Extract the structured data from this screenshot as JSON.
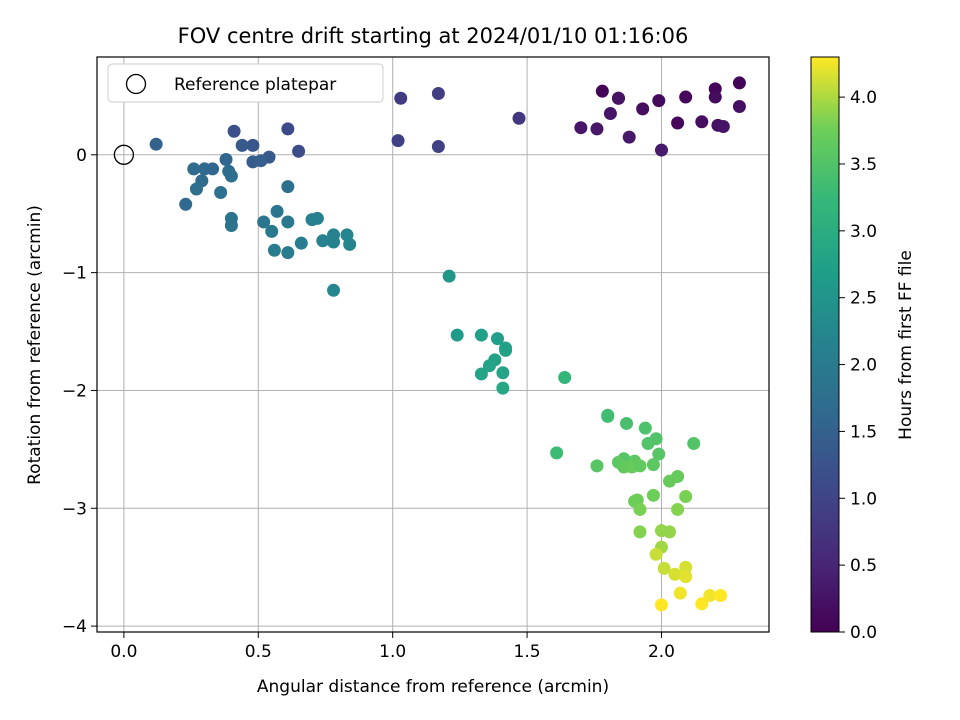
{
  "chart_data": {
    "type": "scatter",
    "title": "FOV centre drift starting at 2024/01/10 01:16:06",
    "xlabel": "Angular distance from reference (arcmin)",
    "ylabel": "Rotation from reference (arcmin)",
    "xlim": [
      -0.1,
      2.4
    ],
    "ylim": [
      -4.05,
      0.83
    ],
    "xticks": [
      0.0,
      0.5,
      1.0,
      1.5,
      2.0
    ],
    "yticks": [
      0,
      -1,
      -2,
      -3,
      -4
    ],
    "xtick_labels": [
      "0.0",
      "0.5",
      "1.0",
      "1.5",
      "2.0"
    ],
    "ytick_labels": [
      "0",
      "−1",
      "−2",
      "−3",
      "−4"
    ],
    "grid": true,
    "legend": {
      "position": "top-left",
      "entries": [
        "Reference platepar"
      ]
    },
    "reference_point": {
      "x": 0,
      "y": 0
    },
    "colorbar": {
      "label": "Hours from first FF file",
      "range": [
        0.0,
        4.3
      ],
      "ticks": [
        0.0,
        0.5,
        1.0,
        1.5,
        2.0,
        2.5,
        3.0,
        3.5,
        4.0
      ],
      "tick_labels": [
        "0.0",
        "0.5",
        "1.0",
        "1.5",
        "2.0",
        "2.5",
        "3.0",
        "3.5",
        "4.0"
      ],
      "colormap": "viridis"
    },
    "points": [
      {
        "x": 1.78,
        "y": 0.54,
        "c": 0.05
      },
      {
        "x": 1.84,
        "y": 0.48,
        "c": 0.08
      },
      {
        "x": 1.99,
        "y": 0.46,
        "c": 0.12
      },
      {
        "x": 2.09,
        "y": 0.49,
        "c": 0.1
      },
      {
        "x": 2.2,
        "y": 0.56,
        "c": 0.07
      },
      {
        "x": 2.29,
        "y": 0.61,
        "c": 0.05
      },
      {
        "x": 2.2,
        "y": 0.49,
        "c": 0.15
      },
      {
        "x": 2.29,
        "y": 0.41,
        "c": 0.2
      },
      {
        "x": 2.15,
        "y": 0.28,
        "c": 0.18
      },
      {
        "x": 2.21,
        "y": 0.25,
        "c": 0.22
      },
      {
        "x": 2.23,
        "y": 0.24,
        "c": 0.25
      },
      {
        "x": 2.06,
        "y": 0.27,
        "c": 0.1
      },
      {
        "x": 1.93,
        "y": 0.39,
        "c": 0.18
      },
      {
        "x": 1.81,
        "y": 0.35,
        "c": 0.3
      },
      {
        "x": 1.84,
        "y": 0.48,
        "c": 0.25
      },
      {
        "x": 1.7,
        "y": 0.23,
        "c": 0.28
      },
      {
        "x": 1.76,
        "y": 0.22,
        "c": 0.3
      },
      {
        "x": 1.88,
        "y": 0.15,
        "c": 0.32
      },
      {
        "x": 2.0,
        "y": 0.04,
        "c": 0.35
      },
      {
        "x": 1.47,
        "y": 0.31,
        "c": 0.8
      },
      {
        "x": 1.03,
        "y": 0.48,
        "c": 0.85
      },
      {
        "x": 1.17,
        "y": 0.52,
        "c": 0.9
      },
      {
        "x": 1.02,
        "y": 0.12,
        "c": 0.95
      },
      {
        "x": 1.17,
        "y": 0.07,
        "c": 0.95
      },
      {
        "x": 0.61,
        "y": 0.22,
        "c": 1.1
      },
      {
        "x": 0.65,
        "y": 0.03,
        "c": 1.15
      },
      {
        "x": 0.41,
        "y": 0.2,
        "c": 1.2
      },
      {
        "x": 0.48,
        "y": 0.08,
        "c": 1.3
      },
      {
        "x": 0.44,
        "y": 0.08,
        "c": 1.35
      },
      {
        "x": 0.54,
        "y": -0.02,
        "c": 1.35
      },
      {
        "x": 0.48,
        "y": -0.06,
        "c": 1.4
      },
      {
        "x": 0.51,
        "y": -0.05,
        "c": 1.45
      },
      {
        "x": 0.12,
        "y": 0.09,
        "c": 1.5
      },
      {
        "x": 0.38,
        "y": -0.04,
        "c": 1.6
      },
      {
        "x": 0.26,
        "y": -0.12,
        "c": 1.7
      },
      {
        "x": 0.3,
        "y": -0.12,
        "c": 1.65
      },
      {
        "x": 0.33,
        "y": -0.12,
        "c": 1.6
      },
      {
        "x": 0.39,
        "y": -0.14,
        "c": 1.7
      },
      {
        "x": 0.4,
        "y": -0.18,
        "c": 1.75
      },
      {
        "x": 0.29,
        "y": -0.22,
        "c": 1.7
      },
      {
        "x": 0.27,
        "y": -0.29,
        "c": 1.75
      },
      {
        "x": 0.36,
        "y": -0.32,
        "c": 1.8
      },
      {
        "x": 0.23,
        "y": -0.42,
        "c": 1.65
      },
      {
        "x": 0.61,
        "y": -0.27,
        "c": 1.8
      },
      {
        "x": 0.4,
        "y": -0.54,
        "c": 1.85
      },
      {
        "x": 0.4,
        "y": -0.6,
        "c": 1.85
      },
      {
        "x": 0.57,
        "y": -0.48,
        "c": 1.9
      },
      {
        "x": 0.52,
        "y": -0.57,
        "c": 1.9
      },
      {
        "x": 0.55,
        "y": -0.65,
        "c": 1.95
      },
      {
        "x": 0.61,
        "y": -0.57,
        "c": 1.95
      },
      {
        "x": 0.56,
        "y": -0.81,
        "c": 2.0
      },
      {
        "x": 0.61,
        "y": -0.83,
        "c": 2.0
      },
      {
        "x": 0.66,
        "y": -0.75,
        "c": 2.05
      },
      {
        "x": 0.7,
        "y": -0.55,
        "c": 2.1
      },
      {
        "x": 0.72,
        "y": -0.54,
        "c": 2.1
      },
      {
        "x": 0.74,
        "y": -0.73,
        "c": 2.15
      },
      {
        "x": 0.78,
        "y": -0.74,
        "c": 2.15
      },
      {
        "x": 0.78,
        "y": -0.68,
        "c": 2.15
      },
      {
        "x": 0.83,
        "y": -0.68,
        "c": 2.2
      },
      {
        "x": 0.84,
        "y": -0.76,
        "c": 2.2
      },
      {
        "x": 0.78,
        "y": -1.15,
        "c": 2.25
      },
      {
        "x": 1.21,
        "y": -1.03,
        "c": 2.55
      },
      {
        "x": 1.24,
        "y": -1.53,
        "c": 2.65
      },
      {
        "x": 1.33,
        "y": -1.53,
        "c": 2.7
      },
      {
        "x": 1.39,
        "y": -1.56,
        "c": 2.7
      },
      {
        "x": 1.42,
        "y": -1.64,
        "c": 2.75
      },
      {
        "x": 1.42,
        "y": -1.66,
        "c": 2.75
      },
      {
        "x": 1.38,
        "y": -1.74,
        "c": 2.75
      },
      {
        "x": 1.36,
        "y": -1.79,
        "c": 2.8
      },
      {
        "x": 1.33,
        "y": -1.86,
        "c": 2.8
      },
      {
        "x": 1.41,
        "y": -1.85,
        "c": 2.8
      },
      {
        "x": 1.41,
        "y": -1.98,
        "c": 2.85
      },
      {
        "x": 1.64,
        "y": -1.89,
        "c": 3.2
      },
      {
        "x": 1.61,
        "y": -2.53,
        "c": 3.3
      },
      {
        "x": 1.8,
        "y": -2.22,
        "c": 3.35
      },
      {
        "x": 1.8,
        "y": -2.21,
        "c": 3.35
      },
      {
        "x": 1.87,
        "y": -2.28,
        "c": 3.4
      },
      {
        "x": 1.94,
        "y": -2.32,
        "c": 3.45
      },
      {
        "x": 1.98,
        "y": -2.41,
        "c": 3.5
      },
      {
        "x": 1.95,
        "y": -2.45,
        "c": 3.5
      },
      {
        "x": 2.12,
        "y": -2.45,
        "c": 3.5
      },
      {
        "x": 1.99,
        "y": -2.54,
        "c": 3.55
      },
      {
        "x": 1.86,
        "y": -2.58,
        "c": 3.55
      },
      {
        "x": 1.84,
        "y": -2.61,
        "c": 3.6
      },
      {
        "x": 1.9,
        "y": -2.6,
        "c": 3.6
      },
      {
        "x": 1.97,
        "y": -2.63,
        "c": 3.6
      },
      {
        "x": 1.76,
        "y": -2.64,
        "c": 3.55
      },
      {
        "x": 1.86,
        "y": -2.65,
        "c": 3.65
      },
      {
        "x": 1.89,
        "y": -2.65,
        "c": 3.7
      },
      {
        "x": 1.92,
        "y": -2.64,
        "c": 3.65
      },
      {
        "x": 2.06,
        "y": -2.73,
        "c": 3.7
      },
      {
        "x": 2.03,
        "y": -2.77,
        "c": 3.7
      },
      {
        "x": 1.97,
        "y": -2.89,
        "c": 3.75
      },
      {
        "x": 2.09,
        "y": -2.9,
        "c": 3.8
      },
      {
        "x": 1.91,
        "y": -2.93,
        "c": 3.75
      },
      {
        "x": 1.9,
        "y": -2.94,
        "c": 3.75
      },
      {
        "x": 1.92,
        "y": -3.01,
        "c": 3.8
      },
      {
        "x": 2.06,
        "y": -3.01,
        "c": 3.85
      },
      {
        "x": 1.92,
        "y": -3.2,
        "c": 3.85
      },
      {
        "x": 2.0,
        "y": -3.19,
        "c": 3.9
      },
      {
        "x": 2.03,
        "y": -3.2,
        "c": 3.9
      },
      {
        "x": 2.0,
        "y": -3.33,
        "c": 3.95
      },
      {
        "x": 1.98,
        "y": -3.39,
        "c": 4.1
      },
      {
        "x": 2.01,
        "y": -3.51,
        "c": 4.1
      },
      {
        "x": 2.09,
        "y": -3.5,
        "c": 4.15
      },
      {
        "x": 2.05,
        "y": -3.56,
        "c": 4.15
      },
      {
        "x": 2.09,
        "y": -3.58,
        "c": 4.2
      },
      {
        "x": 2.07,
        "y": -3.72,
        "c": 4.25
      },
      {
        "x": 2.18,
        "y": -3.74,
        "c": 4.25
      },
      {
        "x": 2.22,
        "y": -3.74,
        "c": 4.3
      },
      {
        "x": 2.15,
        "y": -3.81,
        "c": 4.3
      },
      {
        "x": 2.0,
        "y": -3.82,
        "c": 4.3
      }
    ]
  }
}
